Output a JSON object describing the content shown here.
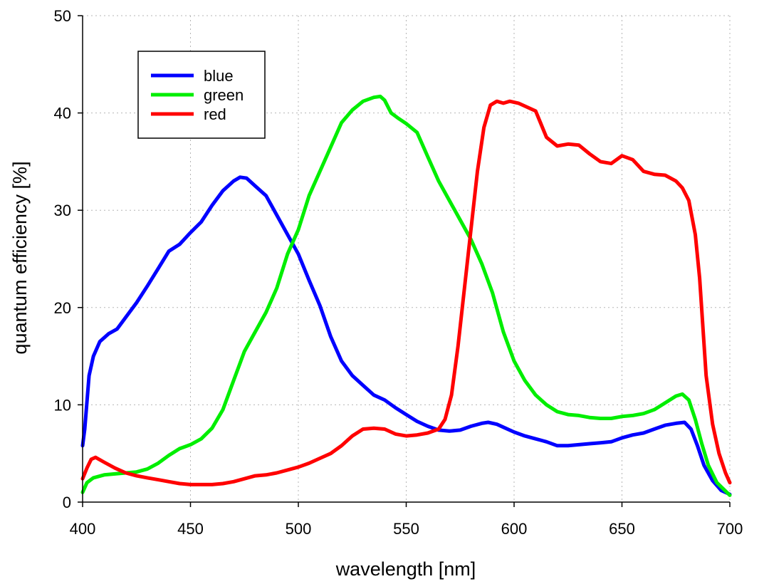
{
  "chart_data": {
    "type": "line",
    "title": "",
    "xlabel": "wavelength [nm]",
    "ylabel": "quantum efficiency [%]",
    "xlim": [
      400,
      700
    ],
    "ylim": [
      0,
      50
    ],
    "xticks": [
      "400",
      "450",
      "500",
      "550",
      "600",
      "650",
      "700"
    ],
    "yticks": [
      "0",
      "10",
      "20",
      "30",
      "40",
      "50"
    ],
    "grid": true,
    "legend": "top-left",
    "series": [
      {
        "name": "blue",
        "color": "#0000ff",
        "x": [
          400,
          401,
          403,
          405,
          408,
          412,
          416,
          420,
          425,
          430,
          435,
          440,
          445,
          450,
          455,
          460,
          465,
          470,
          473,
          476,
          480,
          485,
          490,
          495,
          500,
          505,
          510,
          515,
          520,
          525,
          530,
          535,
          540,
          545,
          550,
          555,
          560,
          565,
          570,
          575,
          580,
          585,
          588,
          592,
          596,
          600,
          605,
          610,
          615,
          620,
          625,
          630,
          635,
          640,
          645,
          650,
          655,
          660,
          665,
          670,
          675,
          679,
          682,
          685,
          688,
          692,
          696,
          700
        ],
        "y": [
          5.8,
          7.5,
          13.0,
          15.0,
          16.5,
          17.3,
          17.8,
          19.0,
          20.5,
          22.2,
          24.0,
          25.8,
          26.5,
          27.7,
          28.8,
          30.5,
          32.0,
          33.0,
          33.4,
          33.3,
          32.5,
          31.5,
          29.5,
          27.5,
          25.5,
          22.8,
          20.2,
          17.0,
          14.5,
          13.0,
          12.0,
          11.0,
          10.5,
          9.7,
          9.0,
          8.3,
          7.8,
          7.4,
          7.3,
          7.4,
          7.8,
          8.1,
          8.2,
          8.0,
          7.6,
          7.2,
          6.8,
          6.5,
          6.2,
          5.8,
          5.8,
          5.9,
          6.0,
          6.1,
          6.2,
          6.6,
          6.9,
          7.1,
          7.5,
          7.9,
          8.1,
          8.2,
          7.5,
          5.8,
          3.8,
          2.2,
          1.2,
          0.8
        ]
      },
      {
        "name": "green",
        "color": "#00ee00",
        "x": [
          400,
          402,
          405,
          410,
          415,
          420,
          425,
          430,
          435,
          440,
          445,
          450,
          455,
          460,
          465,
          470,
          475,
          480,
          485,
          490,
          495,
          500,
          505,
          510,
          515,
          520,
          525,
          530,
          535,
          538,
          540,
          543,
          546,
          550,
          555,
          560,
          565,
          570,
          575,
          580,
          585,
          590,
          595,
          600,
          605,
          610,
          615,
          620,
          625,
          630,
          635,
          640,
          645,
          650,
          655,
          660,
          665,
          670,
          675,
          678,
          681,
          684,
          687,
          690,
          694,
          700
        ],
        "y": [
          1.0,
          2.0,
          2.5,
          2.8,
          2.9,
          3.0,
          3.1,
          3.4,
          4.0,
          4.8,
          5.5,
          5.9,
          6.5,
          7.6,
          9.5,
          12.5,
          15.5,
          17.5,
          19.5,
          22.0,
          25.5,
          28.0,
          31.5,
          34.0,
          36.5,
          39.0,
          40.3,
          41.2,
          41.6,
          41.7,
          41.3,
          40.0,
          39.5,
          38.9,
          38.0,
          35.5,
          33.0,
          31.0,
          29.0,
          27.0,
          24.5,
          21.5,
          17.5,
          14.5,
          12.5,
          11.0,
          10.0,
          9.3,
          9.0,
          8.9,
          8.7,
          8.6,
          8.6,
          8.8,
          8.9,
          9.1,
          9.5,
          10.2,
          10.9,
          11.1,
          10.5,
          8.5,
          6.0,
          3.8,
          2.0,
          0.7
        ]
      },
      {
        "name": "red",
        "color": "#ff0000",
        "x": [
          400,
          402,
          404,
          406,
          410,
          415,
          420,
          425,
          430,
          435,
          440,
          445,
          450,
          455,
          460,
          465,
          470,
          475,
          480,
          485,
          490,
          495,
          500,
          505,
          510,
          515,
          520,
          525,
          530,
          535,
          540,
          545,
          550,
          555,
          560,
          565,
          568,
          571,
          574,
          577,
          580,
          583,
          586,
          589,
          592,
          595,
          598,
          602,
          606,
          610,
          615,
          620,
          625,
          630,
          635,
          640,
          645,
          650,
          655,
          660,
          665,
          670,
          675,
          678,
          681,
          684,
          686,
          689,
          692,
          695,
          698,
          700
        ],
        "y": [
          2.4,
          3.5,
          4.4,
          4.6,
          4.1,
          3.5,
          3.0,
          2.7,
          2.5,
          2.3,
          2.1,
          1.9,
          1.8,
          1.8,
          1.8,
          1.9,
          2.1,
          2.4,
          2.7,
          2.8,
          3.0,
          3.3,
          3.6,
          4.0,
          4.5,
          5.0,
          5.8,
          6.8,
          7.5,
          7.6,
          7.5,
          7.0,
          6.8,
          6.9,
          7.1,
          7.5,
          8.5,
          11.0,
          16.0,
          22.0,
          28.0,
          34.0,
          38.5,
          40.8,
          41.2,
          41.0,
          41.2,
          41.0,
          40.6,
          40.2,
          37.5,
          36.6,
          36.8,
          36.7,
          35.8,
          35.0,
          34.8,
          35.6,
          35.2,
          34.0,
          33.7,
          33.6,
          33.0,
          32.3,
          31.0,
          27.5,
          23.0,
          13.0,
          8.0,
          5.0,
          3.0,
          2.0
        ]
      }
    ]
  }
}
